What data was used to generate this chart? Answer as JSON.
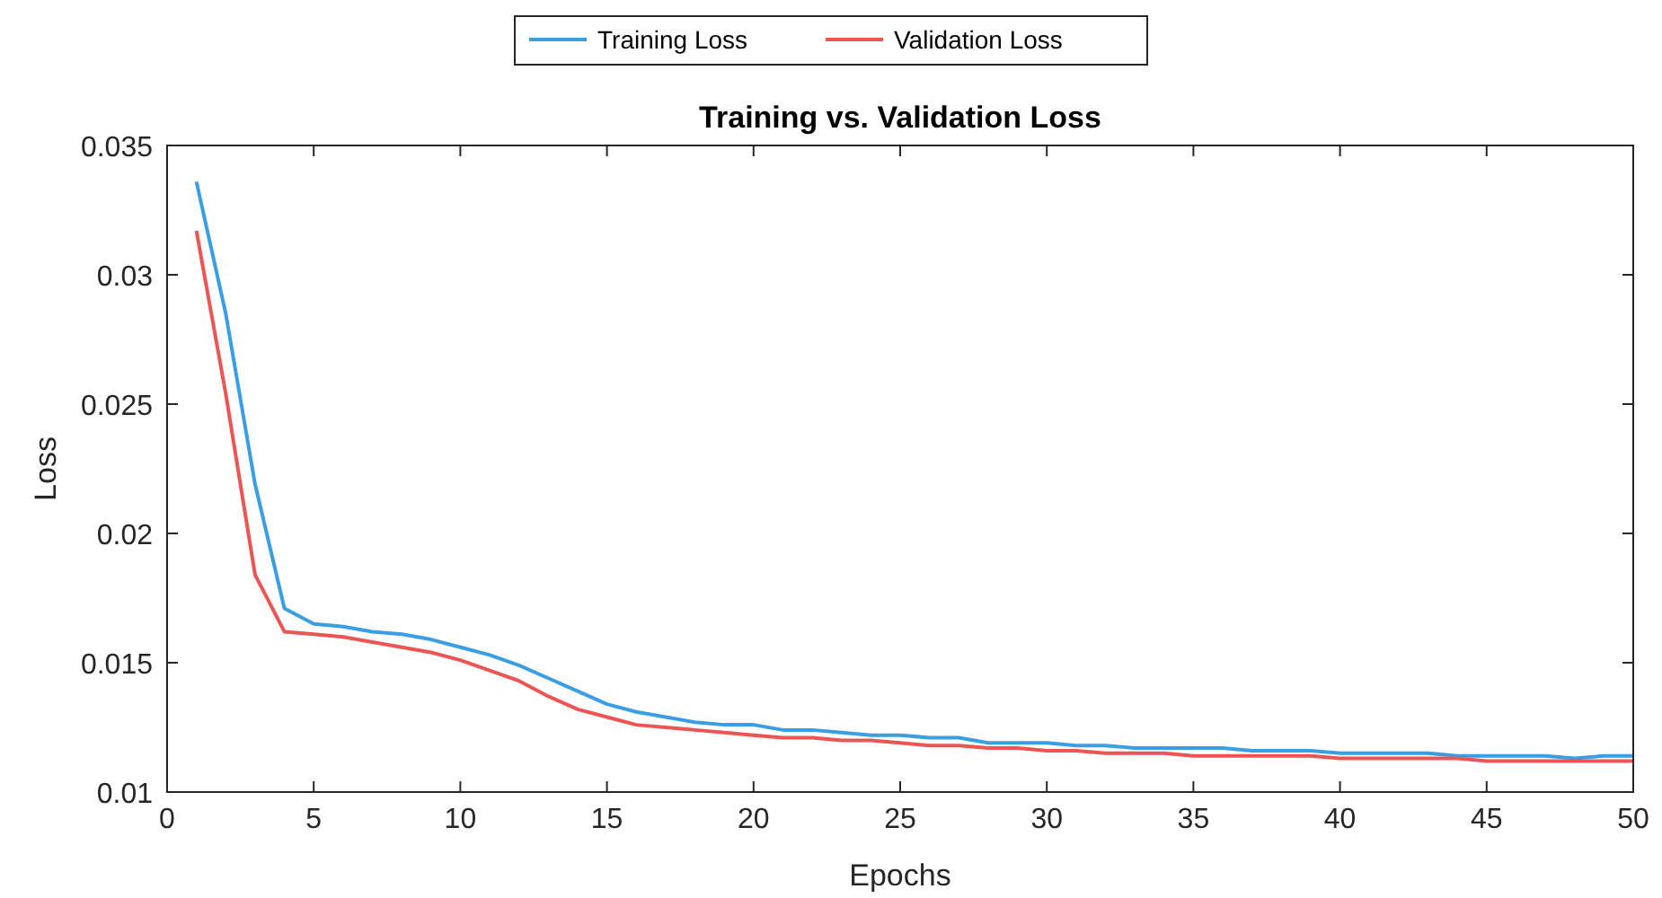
{
  "chart_data": {
    "type": "line",
    "title": "Training vs. Validation Loss",
    "xlabel": "Epochs",
    "ylabel": "Loss",
    "x": [
      1,
      2,
      3,
      4,
      5,
      6,
      7,
      8,
      9,
      10,
      11,
      12,
      13,
      14,
      15,
      16,
      17,
      18,
      19,
      20,
      21,
      22,
      23,
      24,
      25,
      26,
      27,
      28,
      29,
      30,
      31,
      32,
      33,
      34,
      35,
      36,
      37,
      38,
      39,
      40,
      41,
      42,
      43,
      44,
      45,
      46,
      47,
      48,
      49,
      50
    ],
    "series": [
      {
        "name": "Training Loss",
        "color": "#3a9ee4",
        "values": [
          0.0336,
          0.0285,
          0.0219,
          0.0171,
          0.0165,
          0.0164,
          0.0162,
          0.0161,
          0.0159,
          0.0156,
          0.0153,
          0.0149,
          0.0144,
          0.0139,
          0.0134,
          0.0131,
          0.0129,
          0.0127,
          0.0126,
          0.0126,
          0.0124,
          0.0124,
          0.0123,
          0.0122,
          0.0122,
          0.0121,
          0.0121,
          0.0119,
          0.0119,
          0.0119,
          0.0118,
          0.0118,
          0.0117,
          0.0117,
          0.0117,
          0.0117,
          0.0116,
          0.0116,
          0.0116,
          0.0115,
          0.0115,
          0.0115,
          0.0115,
          0.0114,
          0.0114,
          0.0114,
          0.0114,
          0.0113,
          0.0114,
          0.0114
        ]
      },
      {
        "name": "Validation Loss",
        "color": "#ed5454",
        "values": [
          0.0317,
          0.0254,
          0.0184,
          0.0162,
          0.0161,
          0.016,
          0.0158,
          0.0156,
          0.0154,
          0.0151,
          0.0147,
          0.0143,
          0.0137,
          0.0132,
          0.0129,
          0.0126,
          0.0125,
          0.0124,
          0.0123,
          0.0122,
          0.0121,
          0.0121,
          0.012,
          0.012,
          0.0119,
          0.0118,
          0.0118,
          0.0117,
          0.0117,
          0.0116,
          0.0116,
          0.0115,
          0.0115,
          0.0115,
          0.0114,
          0.0114,
          0.0114,
          0.0114,
          0.0114,
          0.0113,
          0.0113,
          0.0113,
          0.0113,
          0.0113,
          0.0112,
          0.0112,
          0.0112,
          0.0112,
          0.0112,
          0.0112
        ]
      }
    ],
    "xlim": [
      0,
      50
    ],
    "xticks": [
      0,
      5,
      10,
      15,
      20,
      25,
      30,
      35,
      40,
      45,
      50
    ],
    "ylim": [
      0.01,
      0.035
    ],
    "yticks": [
      0.01,
      0.015,
      0.02,
      0.025,
      0.03,
      0.035
    ],
    "grid": false,
    "legend": "top",
    "marker": "none",
    "line_style": "solid"
  }
}
